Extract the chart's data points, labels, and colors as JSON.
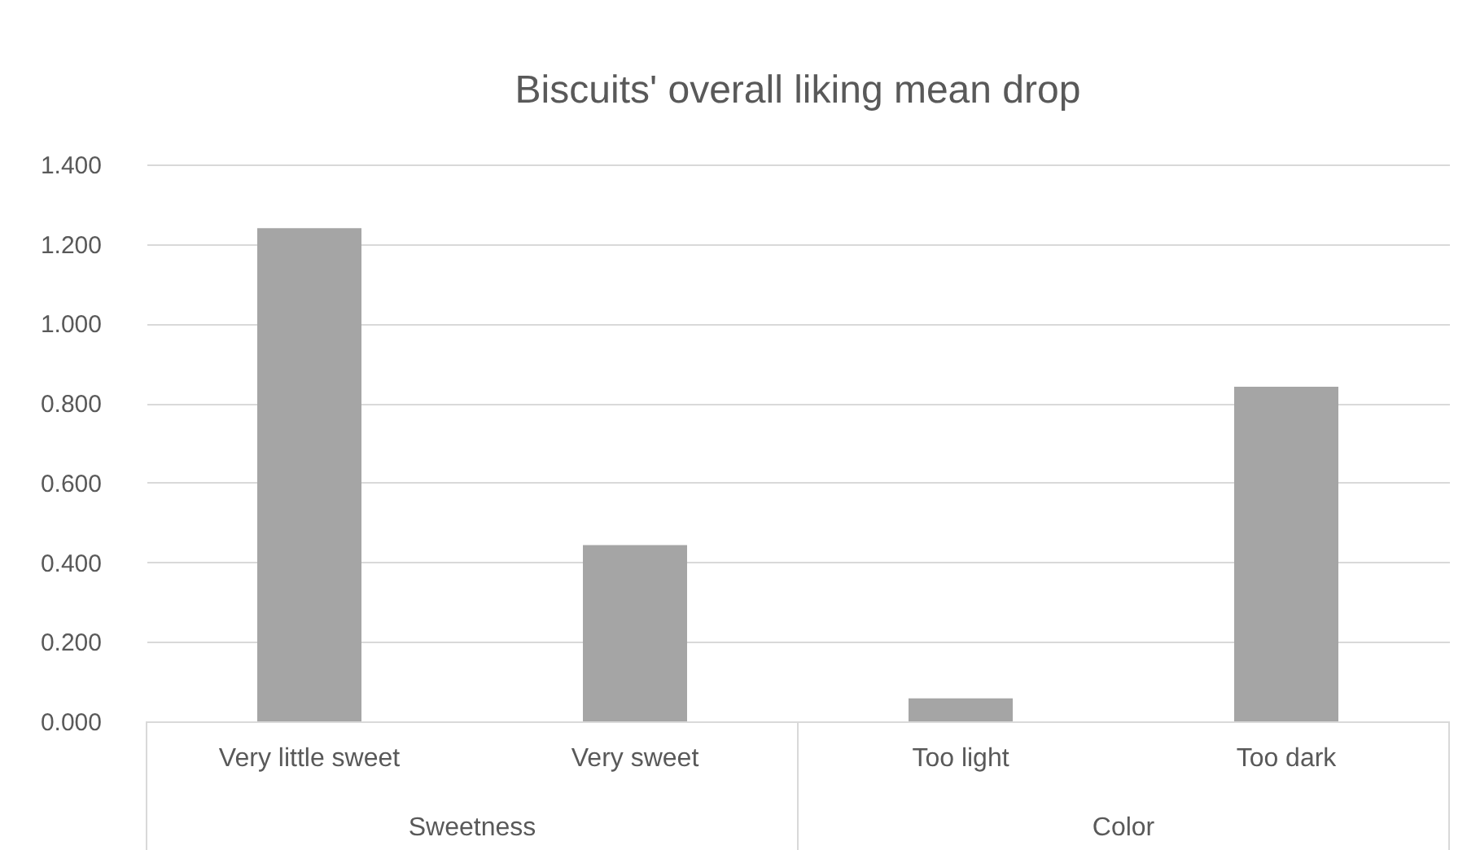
{
  "chart_data": {
    "type": "bar",
    "title": "Biscuits' overall liking mean drop",
    "categories": [
      "Very little sweet",
      "Very sweet",
      "Too light",
      "Too dark"
    ],
    "values": [
      1.24,
      0.443,
      0.058,
      0.841
    ],
    "color": "#a5a5a5",
    "ylim": [
      0,
      1.4
    ],
    "yticks": [
      {
        "value": 0,
        "label": "0.000"
      },
      {
        "value": 0.2,
        "label": "0.200"
      },
      {
        "value": 0.4,
        "label": "0.400"
      },
      {
        "value": 0.6,
        "label": "0.600"
      },
      {
        "value": 0.8,
        "label": "0.800"
      },
      {
        "value": 1,
        "label": "1.000"
      },
      {
        "value": 1.2,
        "label": "1.200"
      },
      {
        "value": 1.4,
        "label": "1.400"
      }
    ],
    "grid": "y",
    "annotations": [
      "Sweetness",
      "Color"
    ]
  }
}
